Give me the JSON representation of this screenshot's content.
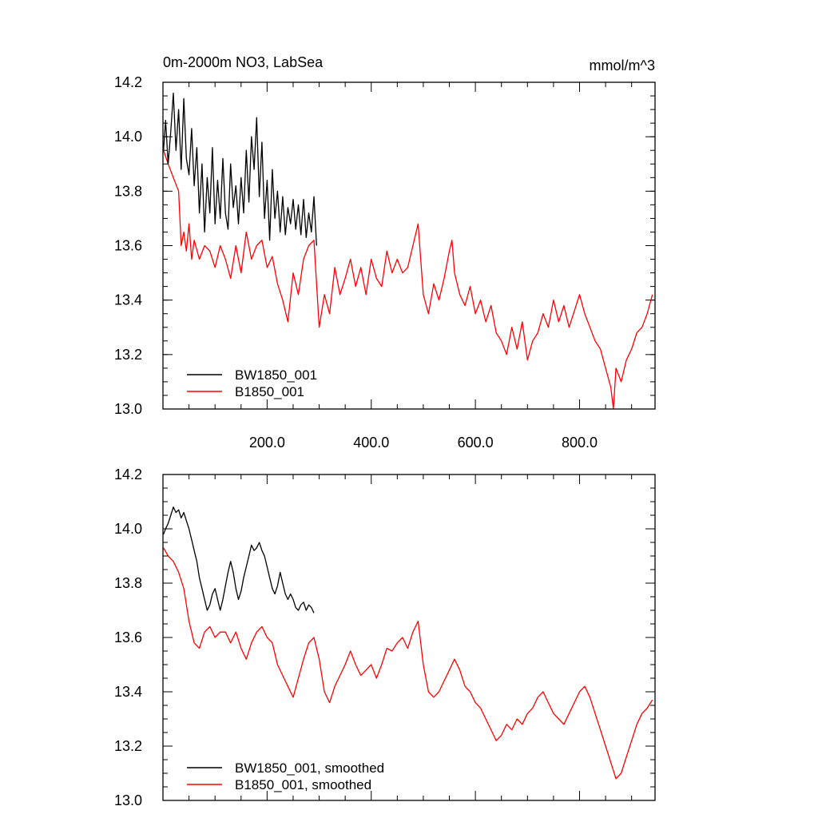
{
  "colors": {
    "black_series": "#000000",
    "red_series": "#ff0000",
    "background": "#ffffff"
  },
  "chart_data": [
    {
      "type": "line",
      "title": "0m-2000m NO3, LabSea",
      "units": "mmol/m^3",
      "xlim": [
        0,
        945
      ],
      "ylim": [
        13.0,
        14.2
      ],
      "xticks": [
        200,
        400,
        600,
        800
      ],
      "xtick_labels": [
        "200.0",
        "400.0",
        "600.0",
        "800.0"
      ],
      "yticks": [
        13.0,
        13.2,
        13.4,
        13.6,
        13.8,
        14.0,
        14.2
      ],
      "ytick_labels": [
        "13.0",
        "13.2",
        "13.4",
        "13.6",
        "13.8",
        "14.0",
        "14.2"
      ],
      "legend_position": "bottom-left",
      "grid": false,
      "series": [
        {
          "name": "BW1850_001",
          "color": "#000000",
          "x": [
            1,
            5,
            10,
            15,
            20,
            25,
            30,
            35,
            40,
            45,
            50,
            55,
            60,
            65,
            70,
            75,
            80,
            85,
            90,
            95,
            100,
            105,
            110,
            115,
            120,
            125,
            130,
            135,
            140,
            145,
            150,
            155,
            160,
            165,
            170,
            175,
            180,
            185,
            190,
            195,
            200,
            205,
            210,
            215,
            220,
            225,
            230,
            235,
            240,
            245,
            250,
            255,
            260,
            265,
            270,
            275,
            280,
            285,
            290,
            295
          ],
          "y": [
            13.95,
            14.06,
            13.9,
            14.02,
            14.16,
            13.95,
            14.1,
            13.88,
            14.14,
            13.92,
            13.86,
            14.03,
            13.82,
            13.96,
            13.72,
            13.9,
            13.65,
            13.85,
            13.72,
            13.96,
            13.68,
            13.84,
            13.7,
            13.92,
            13.72,
            13.66,
            13.9,
            13.74,
            13.82,
            13.68,
            13.85,
            13.72,
            13.95,
            13.76,
            14.0,
            13.88,
            14.07,
            13.78,
            13.98,
            13.7,
            13.84,
            13.62,
            13.88,
            13.7,
            13.8,
            13.65,
            13.78,
            13.64,
            13.74,
            13.68,
            13.77,
            13.66,
            13.75,
            13.64,
            13.77,
            13.63,
            13.72,
            13.65,
            13.78,
            13.6
          ]
        },
        {
          "name": "B1850_001",
          "color": "#ff0000",
          "x": [
            1,
            10,
            20,
            30,
            35,
            40,
            45,
            50,
            55,
            60,
            70,
            80,
            90,
            100,
            110,
            120,
            130,
            140,
            150,
            160,
            170,
            180,
            190,
            200,
            210,
            220,
            230,
            240,
            250,
            260,
            270,
            280,
            290,
            300,
            310,
            320,
            330,
            340,
            350,
            360,
            370,
            380,
            390,
            400,
            410,
            420,
            430,
            440,
            450,
            460,
            470,
            480,
            490,
            500,
            510,
            520,
            530,
            540,
            550,
            555,
            560,
            570,
            580,
            590,
            600,
            610,
            620,
            630,
            640,
            650,
            660,
            670,
            680,
            690,
            700,
            710,
            720,
            730,
            740,
            750,
            760,
            770,
            780,
            790,
            800,
            810,
            820,
            830,
            840,
            850,
            860,
            865,
            870,
            880,
            890,
            900,
            910,
            920,
            930,
            940
          ],
          "y": [
            13.95,
            13.9,
            13.85,
            13.8,
            13.6,
            13.65,
            13.58,
            13.68,
            13.55,
            13.62,
            13.55,
            13.6,
            13.58,
            13.52,
            13.6,
            13.55,
            13.48,
            13.6,
            13.5,
            13.65,
            13.55,
            13.6,
            13.62,
            13.52,
            13.56,
            13.46,
            13.4,
            13.32,
            13.5,
            13.42,
            13.55,
            13.6,
            13.62,
            13.3,
            13.42,
            13.35,
            13.52,
            13.42,
            13.48,
            13.55,
            13.45,
            13.52,
            13.42,
            13.55,
            13.48,
            13.45,
            13.58,
            13.5,
            13.55,
            13.5,
            13.52,
            13.6,
            13.68,
            13.42,
            13.35,
            13.46,
            13.4,
            13.48,
            13.58,
            13.62,
            13.5,
            13.42,
            13.38,
            13.45,
            13.35,
            13.4,
            13.32,
            13.38,
            13.28,
            13.25,
            13.2,
            13.3,
            13.22,
            13.32,
            13.18,
            13.25,
            13.28,
            13.35,
            13.3,
            13.4,
            13.32,
            13.38,
            13.3,
            13.36,
            13.42,
            13.35,
            13.3,
            13.25,
            13.22,
            13.15,
            13.08,
            13.0,
            13.15,
            13.1,
            13.18,
            13.22,
            13.28,
            13.3,
            13.35,
            13.42
          ]
        }
      ]
    },
    {
      "type": "line",
      "title": "",
      "units": "",
      "xlim": [
        0,
        945
      ],
      "ylim": [
        13.0,
        14.2
      ],
      "xticks": [
        200,
        400,
        600,
        800
      ],
      "xtick_labels": [],
      "yticks": [
        13.0,
        13.2,
        13.4,
        13.6,
        13.8,
        14.0,
        14.2
      ],
      "ytick_labels": [
        "13.0",
        "13.2",
        "13.4",
        "13.6",
        "13.8",
        "14.0",
        "14.2"
      ],
      "legend_position": "bottom-left",
      "grid": false,
      "series": [
        {
          "name": "BW1850_001, smoothed",
          "color": "#000000",
          "x": [
            1,
            5,
            10,
            15,
            20,
            25,
            30,
            35,
            40,
            45,
            50,
            55,
            60,
            65,
            70,
            75,
            80,
            85,
            90,
            95,
            100,
            105,
            110,
            115,
            120,
            125,
            130,
            135,
            140,
            145,
            150,
            155,
            160,
            165,
            170,
            175,
            180,
            185,
            190,
            195,
            200,
            205,
            210,
            215,
            220,
            225,
            230,
            235,
            240,
            245,
            250,
            255,
            260,
            265,
            270,
            275,
            280,
            285,
            290
          ],
          "y": [
            13.98,
            14.0,
            14.02,
            14.05,
            14.08,
            14.06,
            14.07,
            14.04,
            14.06,
            14.03,
            14.0,
            13.96,
            13.92,
            13.88,
            13.82,
            13.78,
            13.74,
            13.7,
            13.72,
            13.76,
            13.78,
            13.74,
            13.7,
            13.74,
            13.79,
            13.84,
            13.88,
            13.84,
            13.78,
            13.74,
            13.77,
            13.82,
            13.86,
            13.9,
            13.94,
            13.92,
            13.93,
            13.95,
            13.92,
            13.9,
            13.86,
            13.82,
            13.78,
            13.76,
            13.79,
            13.84,
            13.8,
            13.76,
            13.74,
            13.76,
            13.74,
            13.71,
            13.7,
            13.72,
            13.73,
            13.7,
            13.72,
            13.71,
            13.69
          ]
        },
        {
          "name": "B1850_001, smoothed",
          "color": "#ff0000",
          "x": [
            1,
            10,
            20,
            30,
            40,
            50,
            60,
            70,
            80,
            90,
            100,
            110,
            120,
            130,
            140,
            150,
            160,
            170,
            180,
            190,
            200,
            210,
            220,
            230,
            240,
            250,
            260,
            270,
            280,
            290,
            300,
            310,
            320,
            330,
            340,
            350,
            360,
            370,
            380,
            390,
            400,
            410,
            420,
            430,
            440,
            450,
            460,
            470,
            480,
            490,
            500,
            510,
            520,
            530,
            540,
            550,
            560,
            570,
            580,
            590,
            600,
            610,
            620,
            630,
            640,
            650,
            660,
            670,
            680,
            690,
            700,
            710,
            720,
            730,
            740,
            750,
            760,
            770,
            780,
            790,
            800,
            810,
            820,
            830,
            840,
            850,
            860,
            870,
            880,
            890,
            900,
            910,
            920,
            930,
            940
          ],
          "y": [
            13.93,
            13.9,
            13.88,
            13.84,
            13.78,
            13.66,
            13.58,
            13.56,
            13.62,
            13.64,
            13.6,
            13.62,
            13.62,
            13.58,
            13.62,
            13.56,
            13.52,
            13.58,
            13.62,
            13.64,
            13.6,
            13.58,
            13.5,
            13.46,
            13.42,
            13.38,
            13.45,
            13.52,
            13.58,
            13.6,
            13.52,
            13.4,
            13.36,
            13.42,
            13.46,
            13.5,
            13.55,
            13.5,
            13.46,
            13.48,
            13.5,
            13.45,
            13.5,
            13.56,
            13.55,
            13.58,
            13.6,
            13.56,
            13.62,
            13.66,
            13.5,
            13.4,
            13.38,
            13.4,
            13.44,
            13.48,
            13.52,
            13.48,
            13.42,
            13.4,
            13.36,
            13.34,
            13.3,
            13.26,
            13.22,
            13.24,
            13.28,
            13.26,
            13.3,
            13.28,
            13.32,
            13.34,
            13.38,
            13.4,
            13.36,
            13.32,
            13.3,
            13.28,
            13.32,
            13.36,
            13.4,
            13.42,
            13.38,
            13.32,
            13.26,
            13.2,
            13.14,
            13.08,
            13.1,
            13.16,
            13.22,
            13.28,
            13.32,
            13.34,
            13.37
          ]
        }
      ]
    }
  ]
}
